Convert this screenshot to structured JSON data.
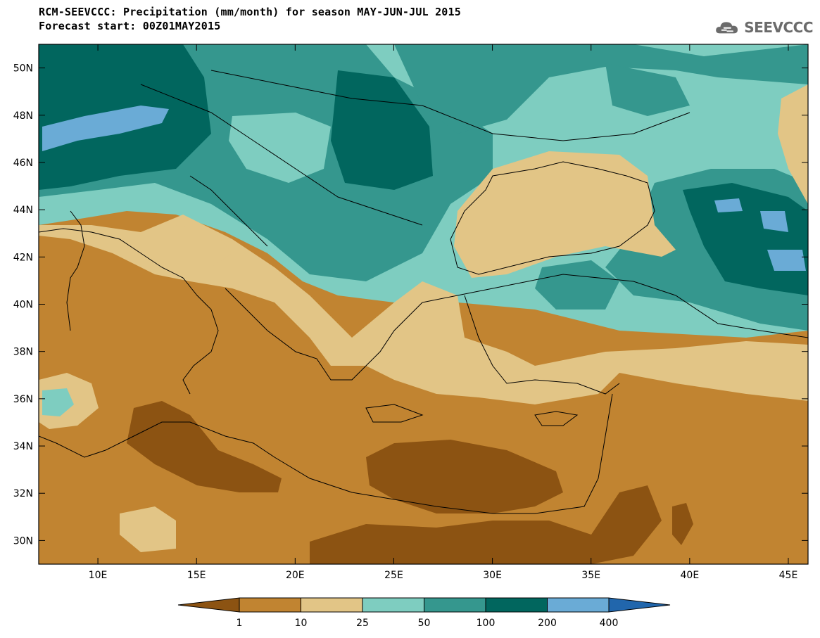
{
  "title_line1": "RCM-SEEVCCC: Precipitation (mm/month) for season MAY-JUN-JUL 2015",
  "title_line2": "Forecast start: 00Z01MAY2015",
  "logo_text": "SEEVCCC",
  "map": {
    "lon_range": [
      7,
      46
    ],
    "lat_range": [
      29,
      51
    ],
    "lon_ticks": [
      "10E",
      "15E",
      "20E",
      "25E",
      "30E",
      "35E",
      "40E",
      "45E"
    ],
    "lat_ticks": [
      "50N",
      "48N",
      "46N",
      "44N",
      "42N",
      "40N",
      "38N",
      "36N",
      "34N",
      "32N",
      "30N"
    ]
  },
  "colorbar": {
    "labels": [
      "1",
      "10",
      "25",
      "50",
      "100",
      "200",
      "400"
    ],
    "colors": [
      "#8c5312",
      "#c18431",
      "#e2c586",
      "#7ecdc0",
      "#35978e",
      "#01665e",
      "#6aabd6",
      "#2166ac"
    ]
  }
}
